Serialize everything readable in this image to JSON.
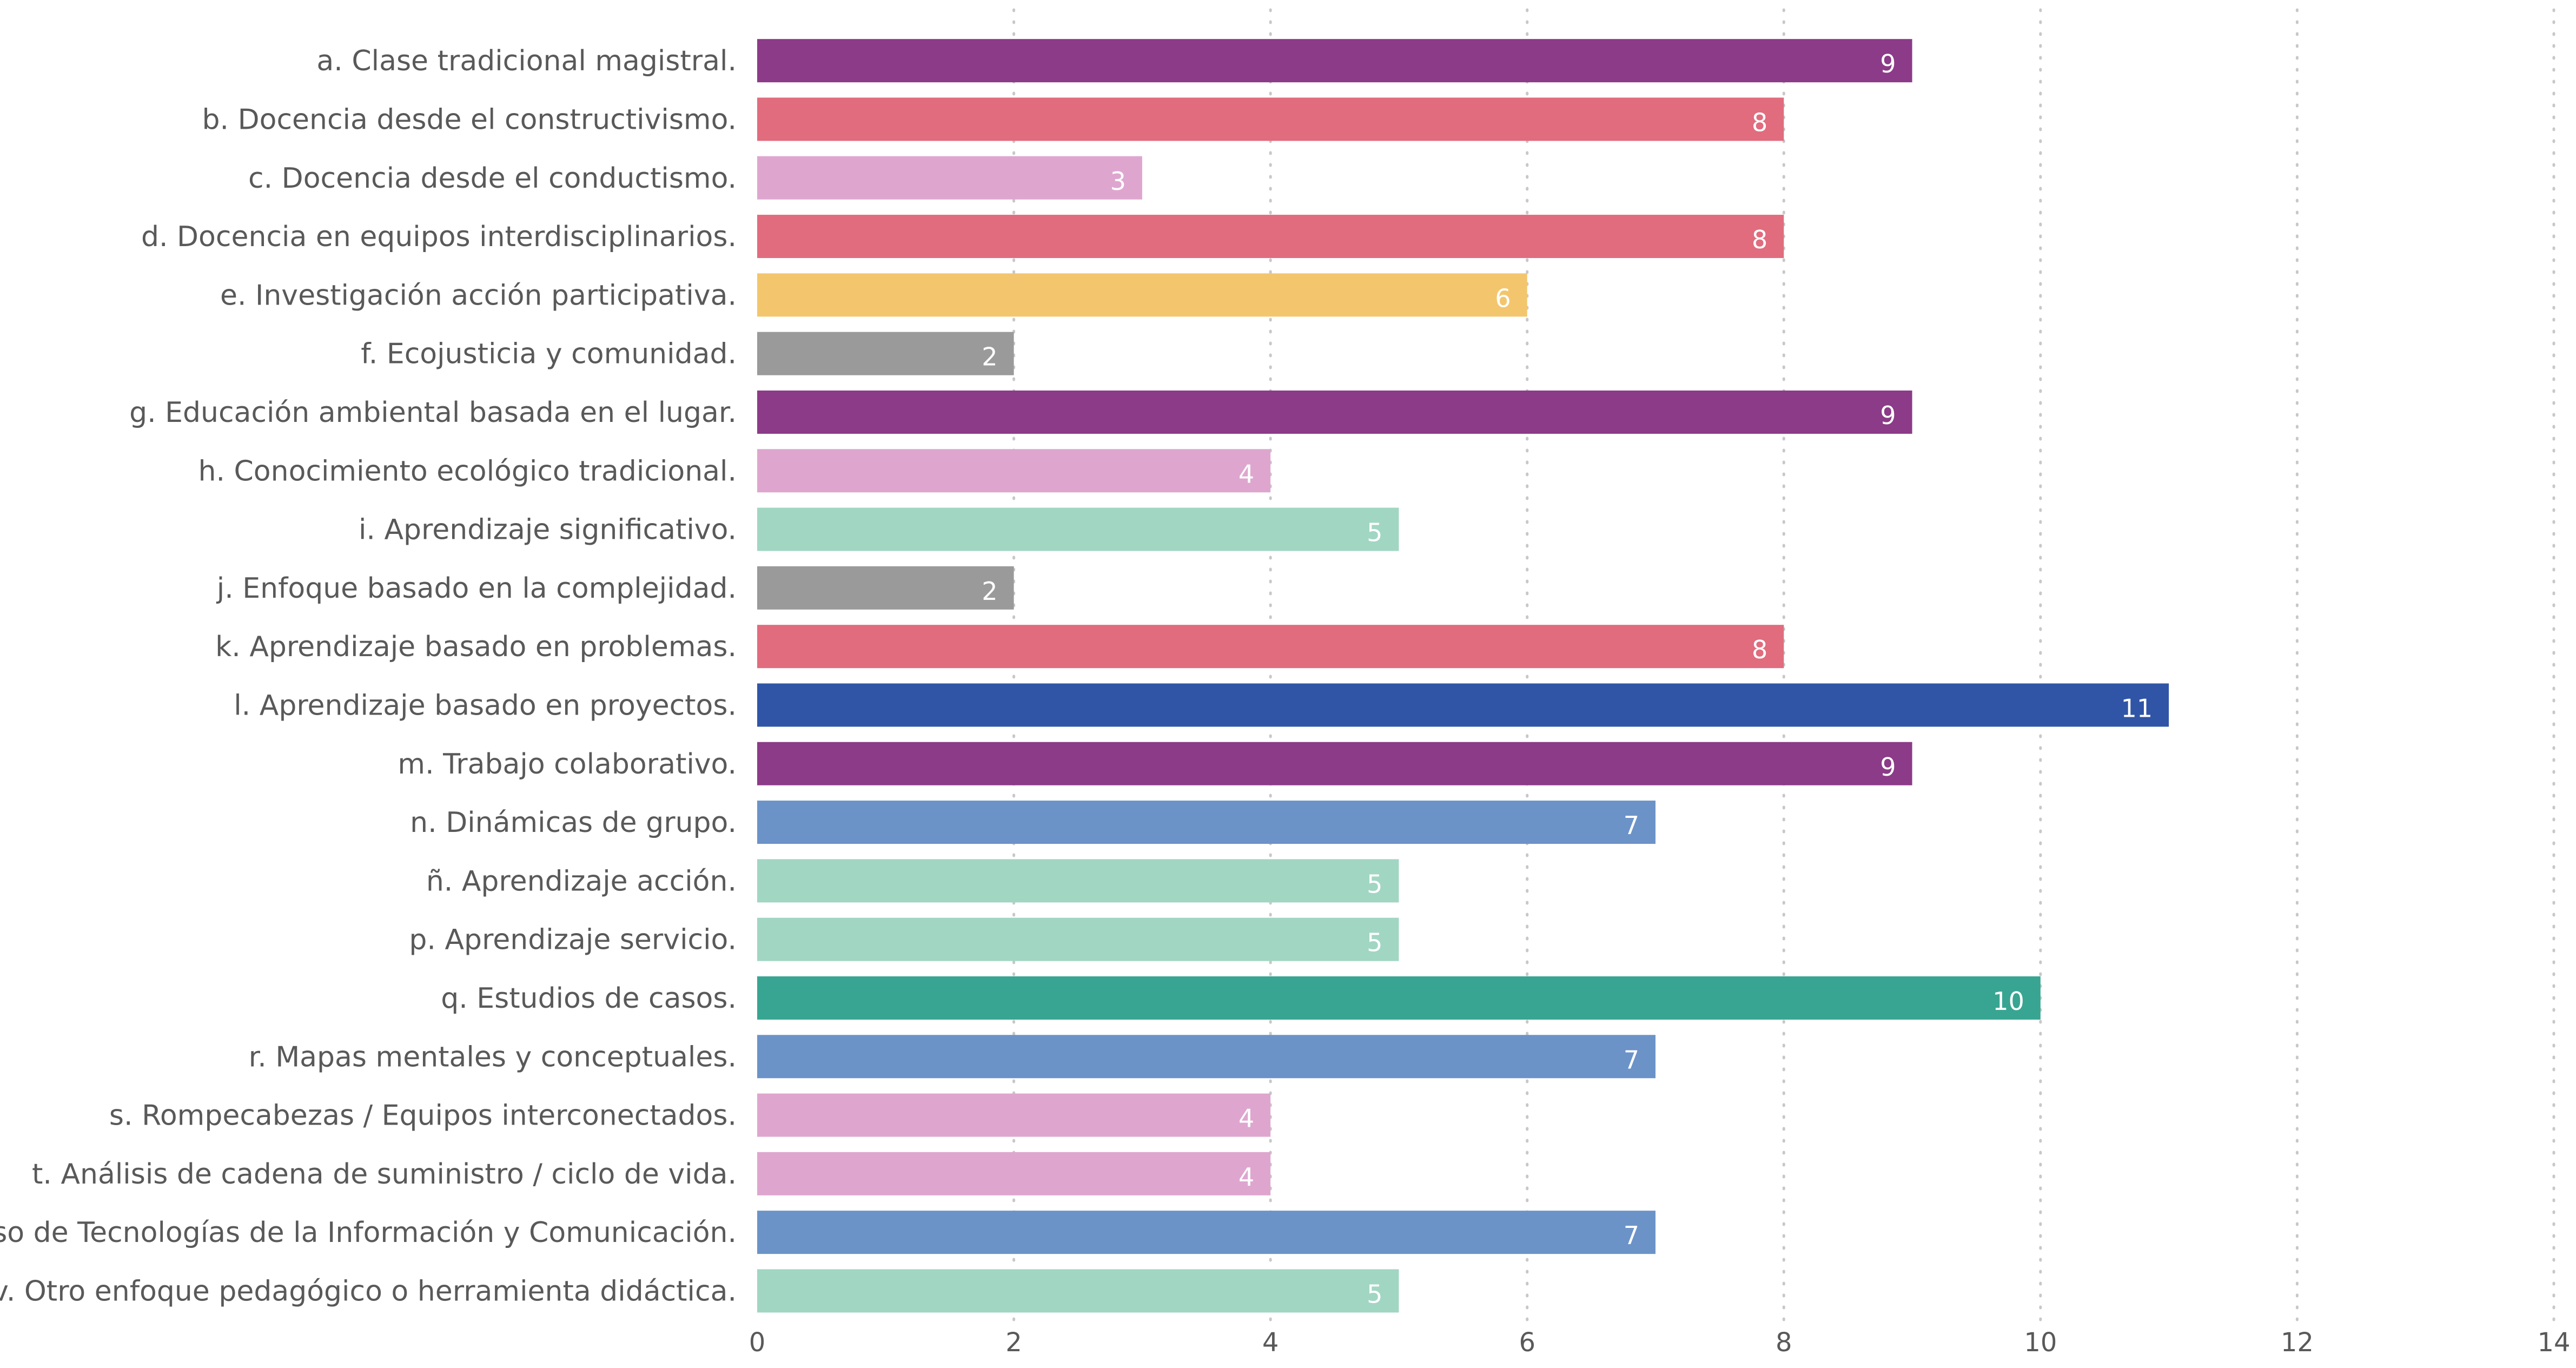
{
  "chart_data": {
    "type": "bar",
    "orientation": "horizontal",
    "title": "",
    "xlabel": "",
    "ylabel": "",
    "xlim": [
      0,
      14
    ],
    "x_ticks": [
      0,
      2,
      4,
      6,
      8,
      10,
      12,
      14
    ],
    "grid": "vertical dotted",
    "legend": "none",
    "categories": [
      "a. Clase tradicional magistral.",
      "b. Docencia desde el constructivismo.",
      "c. Docencia desde el conductismo.",
      "d. Docencia en equipos interdisciplinarios.",
      "e. Investigación acción participativa.",
      "f. Ecojusticia y comunidad.",
      "g. Educación ambiental basada en el lugar.",
      "h. Conocimiento ecológico tradicional.",
      "i. Aprendizaje significativo.",
      "j. Enfoque basado en la complejidad.",
      "k. Aprendizaje basado en problemas.",
      "l. Aprendizaje basado en proyectos.",
      "m. Trabajo colaborativo.",
      "n. Dinámicas de grupo.",
      "ñ. Aprendizaje acción.",
      "p. Aprendizaje servicio.",
      "q. Estudios de casos.",
      "r. Mapas mentales y conceptuales.",
      "s. Rompecabezas / Equipos interconectados.",
      "t. Análisis de cadena de suministro / ciclo de vida.",
      "u. Uso de Tecnologías de la Información y Comunicación.",
      "v. Otro enfoque pedagógico o herramienta didáctica."
    ],
    "values": [
      9,
      8,
      3,
      8,
      6,
      2,
      9,
      4,
      5,
      2,
      8,
      11,
      9,
      7,
      5,
      5,
      10,
      7,
      4,
      4,
      7,
      5
    ],
    "colors": [
      "#8b3b87",
      "#e06c7e",
      "#dea6cf",
      "#e06c7e",
      "#f3c66d",
      "#9a9a9a",
      "#8b3b87",
      "#dea6cf",
      "#a1d6c3",
      "#9a9a9a",
      "#e06c7e",
      "#3055a6",
      "#8b3b87",
      "#6b93c8",
      "#a1d6c3",
      "#a1d6c3",
      "#38a592",
      "#6b93c8",
      "#dea6cf",
      "#dea6cf",
      "#6b93c8",
      "#a1d6c3"
    ],
    "data_labels": true
  }
}
